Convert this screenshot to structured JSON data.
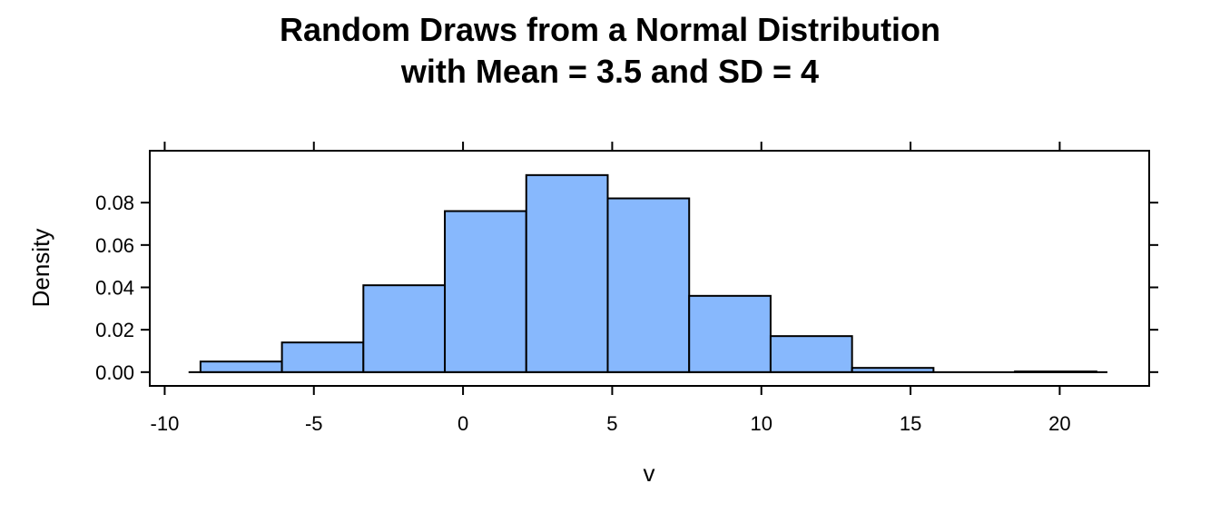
{
  "chart_data": {
    "type": "bar",
    "subtype": "histogram",
    "title_lines": [
      "Random Draws from a Normal Distribution",
      "with Mean = 3.5 and SD = 4"
    ],
    "xlabel": "v",
    "ylabel": "Density",
    "xlim": [
      -10.5,
      23
    ],
    "ylim": [
      -0.0065,
      0.1045
    ],
    "x_ticks": [
      -10,
      -5,
      0,
      5,
      10,
      15,
      20
    ],
    "x_tick_labels": [
      "-10",
      "-5",
      "0",
      "5",
      "10",
      "15",
      "20"
    ],
    "y_ticks": [
      0.0,
      0.02,
      0.04,
      0.06,
      0.08
    ],
    "y_tick_labels": [
      "0.00",
      "0.02",
      "0.04",
      "0.06",
      "0.08"
    ],
    "bins": [
      {
        "x0": -8.8,
        "x1": -6.07,
        "density": 0.005
      },
      {
        "x0": -6.07,
        "x1": -3.34,
        "density": 0.014
      },
      {
        "x0": -3.34,
        "x1": -0.61,
        "density": 0.041
      },
      {
        "x0": -0.61,
        "x1": 2.12,
        "density": 0.076
      },
      {
        "x0": 2.12,
        "x1": 4.85,
        "density": 0.093
      },
      {
        "x0": 4.85,
        "x1": 7.58,
        "density": 0.082
      },
      {
        "x0": 7.58,
        "x1": 10.31,
        "density": 0.036
      },
      {
        "x0": 10.31,
        "x1": 13.04,
        "density": 0.017
      },
      {
        "x0": 13.04,
        "x1": 15.77,
        "density": 0.002
      },
      {
        "x0": 15.77,
        "x1": 18.5,
        "density": 0.0
      },
      {
        "x0": 18.5,
        "x1": 21.23,
        "density": 0.0003
      }
    ],
    "baseline_range": [
      -9.2,
      21.6
    ],
    "grid": false,
    "legend": "none",
    "colors": {
      "bar_fill": "#87B8FD",
      "bar_stroke": "#000000",
      "axis": "#000000",
      "background": "#FFFFFF"
    }
  }
}
